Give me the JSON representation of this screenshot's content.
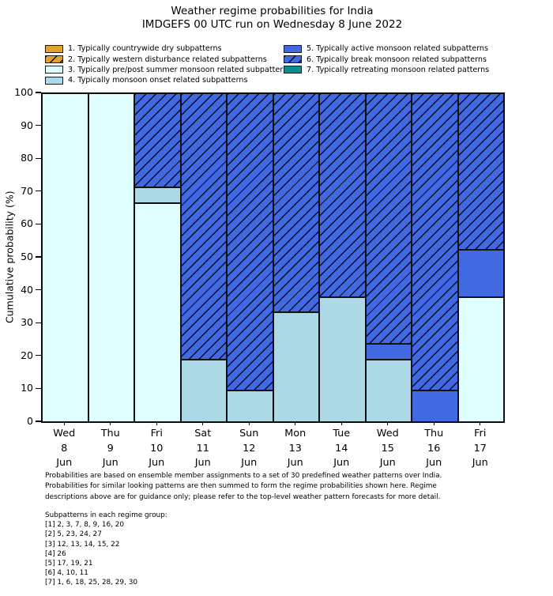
{
  "title": {
    "line1": "Weather regime probabilities for India",
    "line2": "IMDGEFS 00 UTC run on Wednesday 8 June 2022"
  },
  "axis": {
    "ylabel": "Cumulative probability (%)"
  },
  "chart_data": {
    "type": "bar",
    "stacked": true,
    "title": "Weather regime probabilities for India",
    "subtitle": "IMDGEFS 00 UTC run on Wednesday 8 June 2022",
    "ylabel": "Cumulative probability (%)",
    "xlabel": "",
    "ylim": [
      0,
      100
    ],
    "ytick_step": 10,
    "grid": false,
    "legend_position": "top",
    "categories": [
      [
        "Wed",
        "8",
        "Jun"
      ],
      [
        "Thu",
        "9",
        "Jun"
      ],
      [
        "Fri",
        "10",
        "Jun"
      ],
      [
        "Sat",
        "11",
        "Jun"
      ],
      [
        "Sun",
        "12",
        "Jun"
      ],
      [
        "Mon",
        "13",
        "Jun"
      ],
      [
        "Tue",
        "14",
        "Jun"
      ],
      [
        "Wed",
        "15",
        "Jun"
      ],
      [
        "Thu",
        "16",
        "Jun"
      ],
      [
        "Fri",
        "17",
        "Jun"
      ]
    ],
    "series": [
      {
        "name": "1. Typically countrywide dry subpatterns",
        "color": "#E1A32E",
        "hatch": false,
        "values": [
          0,
          0,
          0,
          0,
          0,
          0,
          0,
          0,
          0,
          0
        ]
      },
      {
        "name": "2. Typically western disturbance related subpatterns",
        "color": "#E1A32E",
        "hatch": true,
        "values": [
          0,
          0,
          0,
          0,
          0,
          0,
          0,
          0,
          0,
          0
        ]
      },
      {
        "name": "3. Typically pre/post summer monsoon related subpatterns",
        "color": "#E0FFFF",
        "hatch": false,
        "values": [
          100,
          100,
          66.7,
          0,
          0,
          0,
          0,
          0,
          0,
          38.1
        ]
      },
      {
        "name": "4. Typically monsoon onset related subpatterns",
        "color": "#ADD8E6",
        "hatch": false,
        "values": [
          0,
          0,
          4.8,
          19.0,
          9.5,
          33.3,
          38.1,
          19.0,
          0,
          0
        ]
      },
      {
        "name": "5. Typically active monsoon related subpatterns",
        "color": "#4169E1",
        "hatch": false,
        "values": [
          0,
          0,
          0,
          0,
          0,
          0,
          0,
          4.8,
          9.5,
          14.3
        ]
      },
      {
        "name": "6. Typically break monsoon related subpatterns",
        "color": "#4169E1",
        "hatch": true,
        "values": [
          0,
          0,
          28.6,
          81.0,
          90.5,
          66.7,
          61.9,
          76.2,
          90.5,
          47.6
        ]
      },
      {
        "name": "7. Typically retreating monsoon related patterns",
        "color": "#0F8C8C",
        "hatch": false,
        "values": [
          0,
          0,
          0,
          0,
          0,
          0,
          0,
          0,
          0,
          0
        ]
      }
    ]
  },
  "footer": {
    "lines": [
      "Probabilities are based on ensemble member assignments to a set of 30 predefined weather patterns over India.",
      "Probabilities for similar looking patterns are then summed to form the regime probabilities shown here. Regime",
      "descriptions above are for guidance only; please refer to the top-level weather pattern forecasts for more detail."
    ],
    "subpatterns_title": "Subpatterns in each regime group:",
    "subpatterns": [
      "[1] 2, 3, 7, 8, 9, 16, 20",
      "[2] 5, 23, 24, 27",
      "[3] 12, 13, 14, 15, 22",
      "[4] 26",
      "[5] 17, 19, 21",
      "[6] 4, 10, 11",
      "[7] 1, 6, 18, 25, 28, 29, 30"
    ]
  }
}
